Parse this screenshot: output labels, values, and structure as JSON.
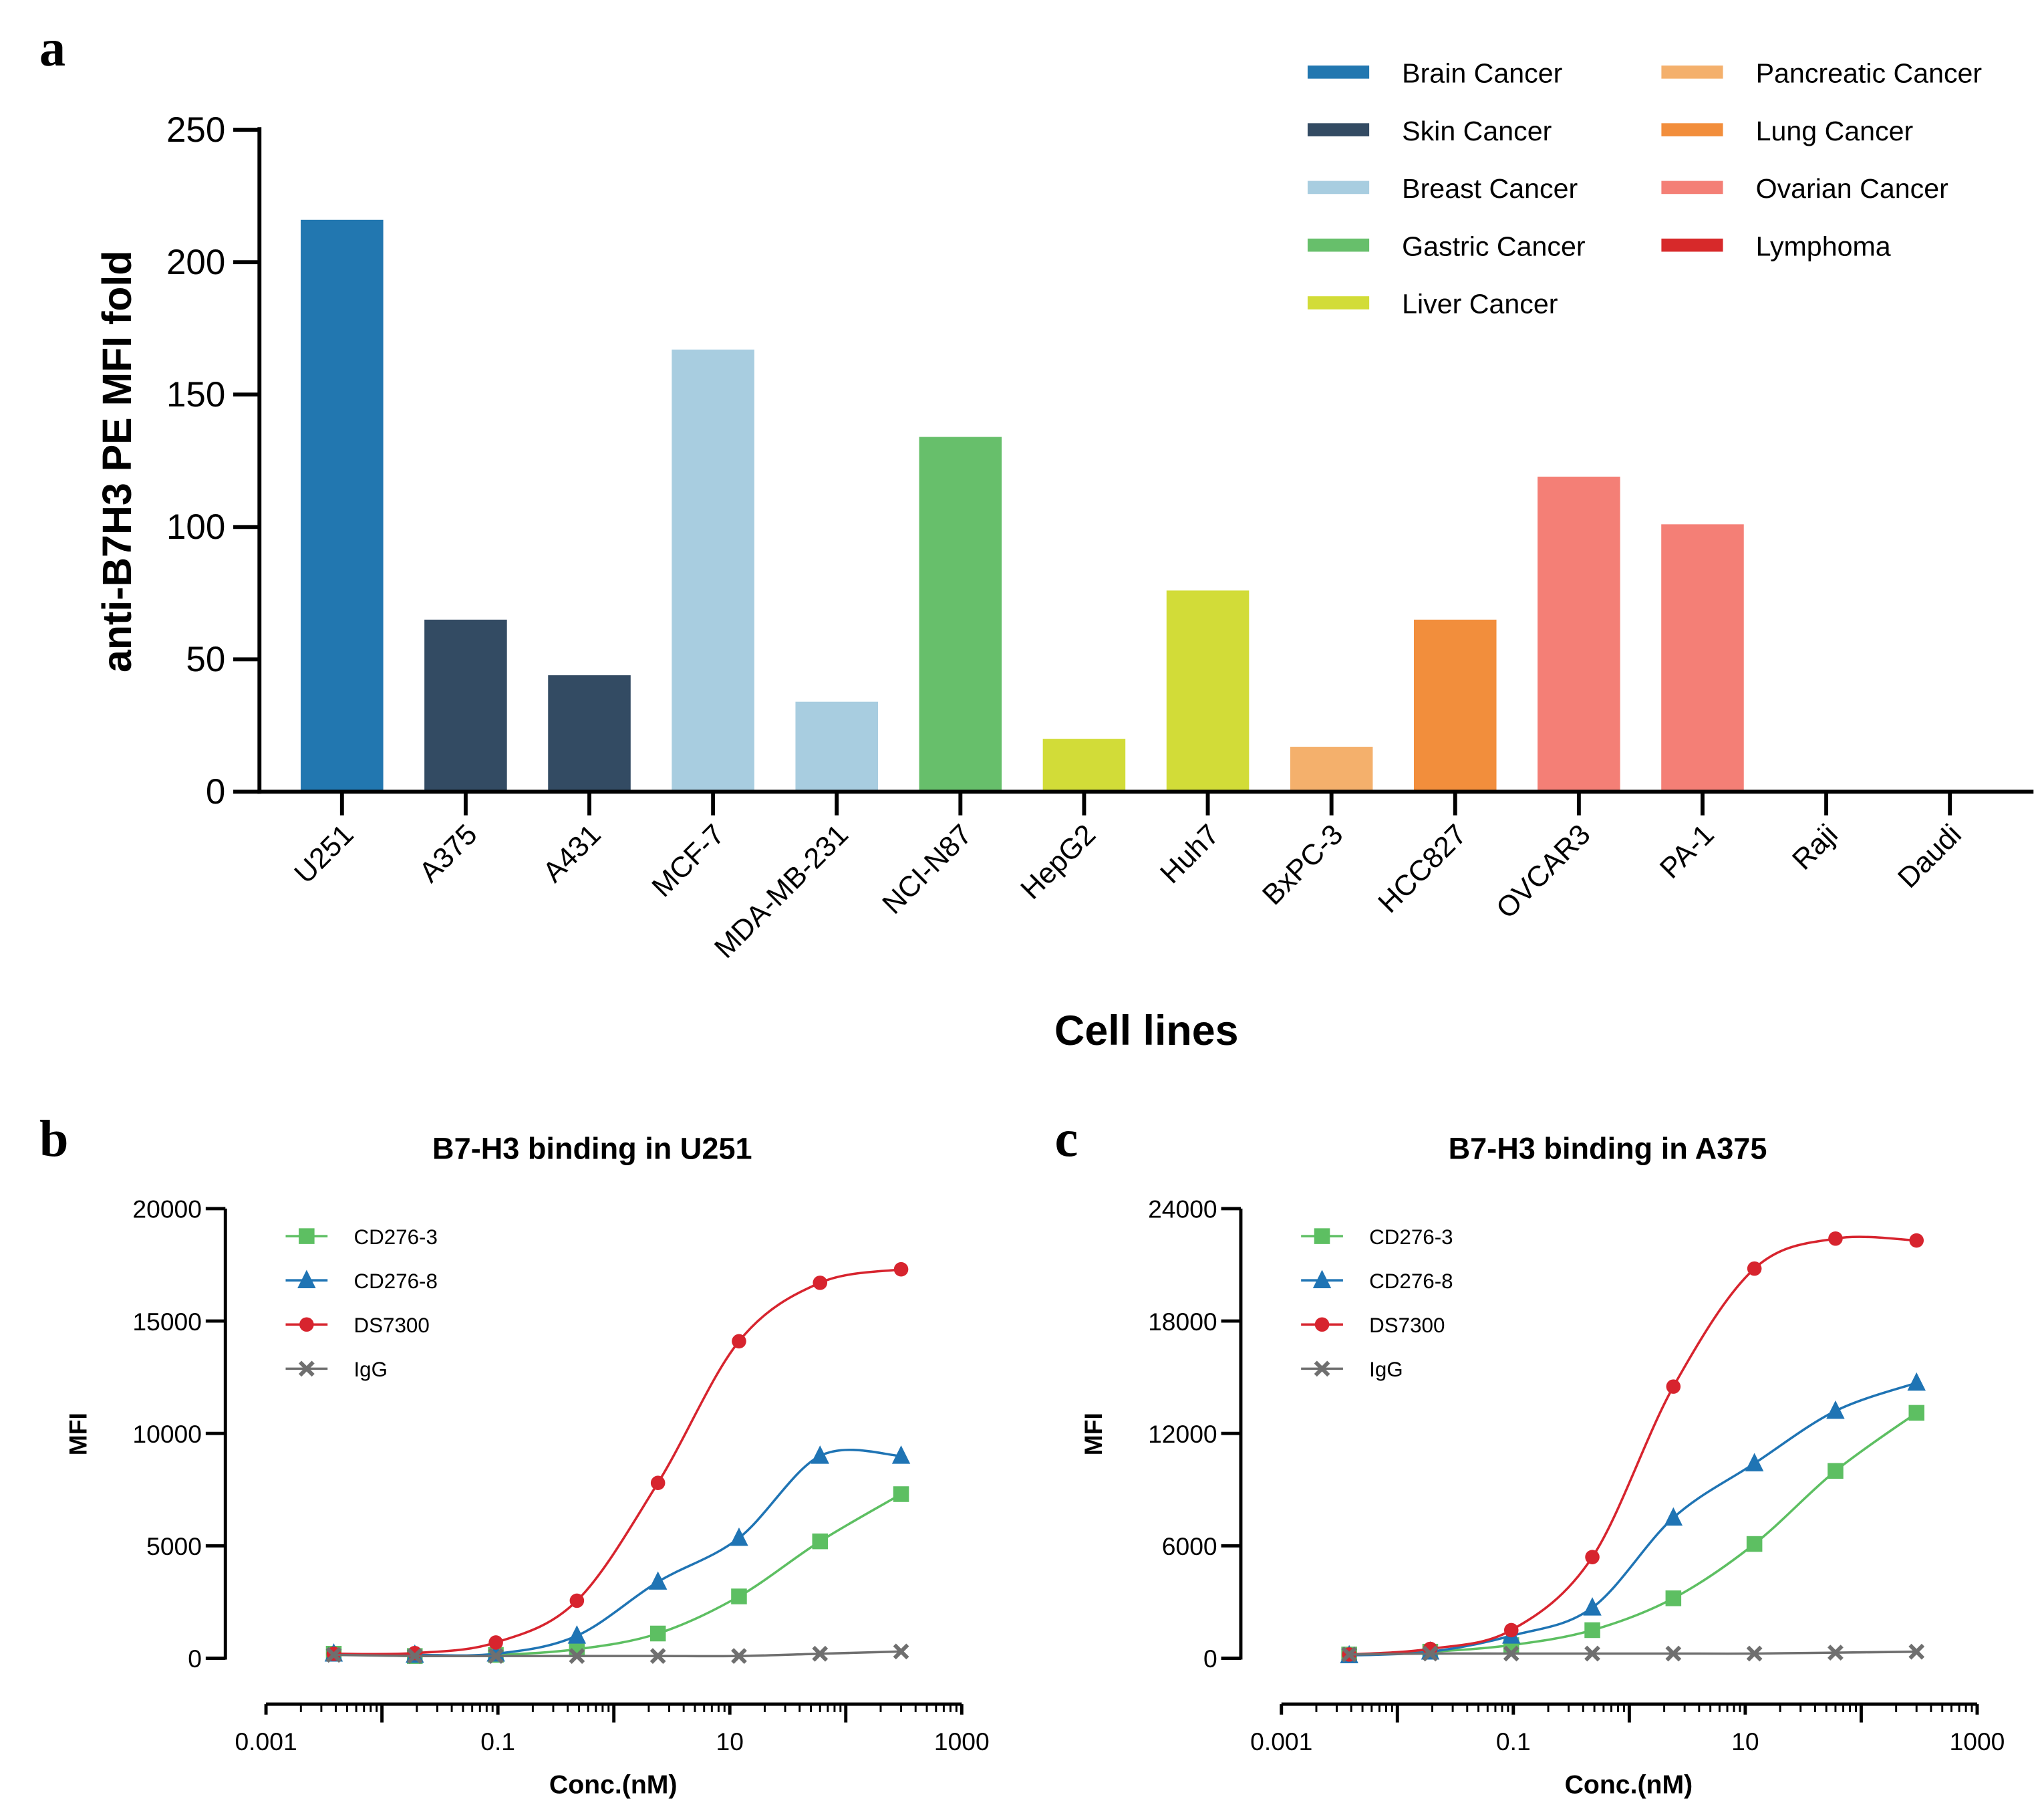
{
  "figure_letters": {
    "a": "a",
    "b": "b",
    "c": "c"
  },
  "chart_data": [
    {
      "type": "bar",
      "panel": "a",
      "title": "",
      "xlabel": "Cell lines",
      "ylabel": "anti-B7H3 PE MFI fold",
      "ylim": [
        0,
        250
      ],
      "yticks": [
        0,
        50,
        100,
        150,
        200,
        250
      ],
      "grid": false,
      "legend_position": "top-right",
      "categories": [
        "U251",
        "A375",
        "A431",
        "MCF-7",
        "MDA-MB-231",
        "NCI-N87",
        "HepG2",
        "Huh7",
        "BxPC-3",
        "HCC827",
        "OVCAR3",
        "PA-1",
        "Raji",
        "Daudi"
      ],
      "values": [
        216,
        65,
        44,
        167,
        34,
        134,
        20,
        76,
        17,
        65,
        119,
        101,
        0,
        0
      ],
      "groups": [
        "Brain Cancer",
        "Skin Cancer",
        "Skin Cancer",
        "Breast Cancer",
        "Breast Cancer",
        "Gastric Cancer",
        "Liver Cancer",
        "Liver Cancer",
        "Pancreatic Cancer",
        "Lung Cancer",
        "Ovarian Cancer",
        "Ovarian Cancer",
        "Lymphoma",
        "Lymphoma"
      ],
      "legend": [
        {
          "name": "Brain Cancer",
          "color": "#2277b0"
        },
        {
          "name": "Skin Cancer",
          "color": "#334b63"
        },
        {
          "name": "Breast Cancer",
          "color": "#a8cde0"
        },
        {
          "name": "Gastric Cancer",
          "color": "#67bf6b"
        },
        {
          "name": "Liver Cancer",
          "color": "#d2dc38"
        },
        {
          "name": "Pancreatic Cancer",
          "color": "#f4b06c"
        },
        {
          "name": "Lung Cancer",
          "color": "#f28e3c"
        },
        {
          "name": "Ovarian Cancer",
          "color": "#f47f76"
        },
        {
          "name": "Lymphoma",
          "color": "#d7292a"
        }
      ]
    },
    {
      "type": "line",
      "panel": "b",
      "title": "B7-H3 binding in U251",
      "xlabel": "Conc.(nM)",
      "ylabel": "MFI",
      "xscale": "log",
      "xlim": [
        0.001,
        1000
      ],
      "xticks": [
        "0.001",
        "0.1",
        "10",
        "1000"
      ],
      "ylim": [
        0,
        20000
      ],
      "yticks": [
        0,
        5000,
        10000,
        15000,
        20000
      ],
      "legend_position": "top-left",
      "x": [
        0.00384,
        0.0192,
        0.096,
        0.48,
        2.4,
        12,
        60,
        300
      ],
      "series": [
        {
          "name": "CD276-3",
          "marker": "square",
          "color": "#5dbf62",
          "values": [
            200,
            100,
            150,
            400,
            1100,
            2750,
            5200,
            7300
          ]
        },
        {
          "name": "CD276-8",
          "marker": "triangle",
          "color": "#1f74b4",
          "values": [
            200,
            150,
            200,
            1000,
            3400,
            5350,
            9000,
            9000
          ]
        },
        {
          "name": "DS7300",
          "marker": "circle",
          "color": "#d7242e",
          "values": [
            200,
            230,
            700,
            2560,
            7800,
            14100,
            16700,
            17300
          ]
        },
        {
          "name": "IgG",
          "marker": "x",
          "color": "#6f6f6f",
          "values": [
            150,
            100,
            100,
            100,
            100,
            100,
            200,
            300
          ]
        }
      ]
    },
    {
      "type": "line",
      "panel": "c",
      "title": "B7-H3 binding in A375",
      "xlabel": "Conc.(nM)",
      "ylabel": "MFI",
      "xscale": "log",
      "xlim": [
        0.001,
        1000
      ],
      "xticks": [
        "0.001",
        "0.1",
        "10",
        "1000"
      ],
      "ylim": [
        0,
        24000
      ],
      "yticks": [
        0,
        6000,
        12000,
        18000,
        24000
      ],
      "legend_position": "top-left",
      "x": [
        0.00384,
        0.0192,
        0.096,
        0.48,
        2.4,
        12,
        60,
        300
      ],
      "series": [
        {
          "name": "CD276-3",
          "marker": "square",
          "color": "#5dbf62",
          "values": [
            200,
            350,
            700,
            1500,
            3200,
            6100,
            10000,
            13100
          ]
        },
        {
          "name": "CD276-8",
          "marker": "triangle",
          "color": "#1f74b4",
          "values": [
            150,
            350,
            1200,
            2700,
            7500,
            10400,
            13200,
            14700
          ]
        },
        {
          "name": "DS7300",
          "marker": "circle",
          "color": "#d7242e",
          "values": [
            200,
            500,
            1500,
            5400,
            14500,
            20800,
            22400,
            22300
          ]
        },
        {
          "name": "IgG",
          "marker": "x",
          "color": "#6f6f6f",
          "values": [
            200,
            250,
            250,
            250,
            250,
            250,
            300,
            350
          ]
        }
      ]
    }
  ]
}
